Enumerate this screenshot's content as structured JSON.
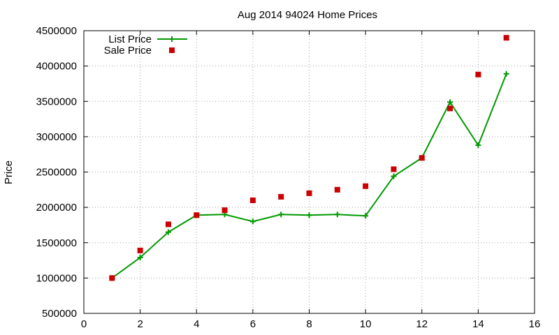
{
  "chart_data": {
    "type": "line",
    "title": "Aug 2014 94024 Home Prices",
    "xlabel": "",
    "ylabel": "Price",
    "xlim": [
      0,
      16
    ],
    "ylim": [
      500000,
      4500000
    ],
    "xticks": [
      0,
      2,
      4,
      6,
      8,
      10,
      12,
      14,
      16
    ],
    "yticks": [
      500000,
      1000000,
      1500000,
      2000000,
      2500000,
      3000000,
      3500000,
      4000000,
      4500000
    ],
    "grid": true,
    "legend_position": "top-left",
    "series": [
      {
        "name": "List Price",
        "style": "line-with-plus-markers",
        "color": "#009900",
        "x": [
          1,
          2,
          3,
          4,
          5,
          6,
          7,
          8,
          9,
          10,
          11,
          12,
          13,
          14,
          15
        ],
        "values": [
          1000000,
          1290000,
          1650000,
          1890000,
          1900000,
          1800000,
          1900000,
          1890000,
          1900000,
          1880000,
          2440000,
          2700000,
          3490000,
          2880000,
          3890000
        ]
      },
      {
        "name": "Sale Price",
        "style": "square-markers",
        "color": "#cc0000",
        "x": [
          1,
          2,
          3,
          4,
          5,
          6,
          7,
          8,
          9,
          10,
          11,
          12,
          13,
          14,
          15
        ],
        "values": [
          1000000,
          1390000,
          1760000,
          1890000,
          1960000,
          2100000,
          2150000,
          2200000,
          2250000,
          2300000,
          2540000,
          2700000,
          3400000,
          3880000,
          4400000
        ]
      }
    ]
  }
}
